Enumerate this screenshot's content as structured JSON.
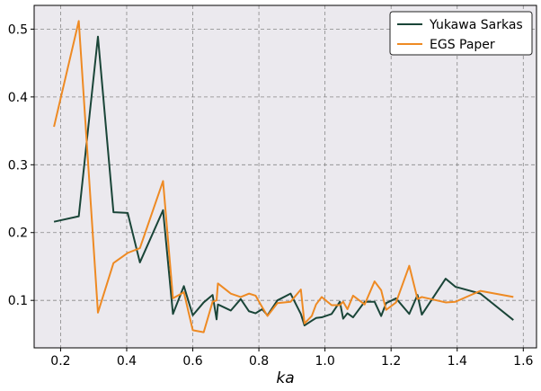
{
  "chart_data": {
    "type": "line",
    "xlabel": "ka",
    "ylabel": "",
    "xlim": [
      0.12,
      1.64
    ],
    "ylim": [
      0.03,
      0.535
    ],
    "xticks": [
      "0.2",
      "0.4",
      "0.6",
      "0.8",
      "1.0",
      "1.2",
      "1.4",
      "1.6"
    ],
    "yticks": [
      "0.1",
      "0.2",
      "0.3",
      "0.4",
      "0.5"
    ],
    "grid": true,
    "legend_position": "top-right",
    "background": "#ebe9ee",
    "series": [
      {
        "name": "Yukawa Sarkas",
        "color": "#1a4538",
        "x": [
          0.18,
          0.255,
          0.313,
          0.36,
          0.403,
          0.44,
          0.51,
          0.54,
          0.573,
          0.6,
          0.633,
          0.66,
          0.672,
          0.676,
          0.715,
          0.745,
          0.77,
          0.79,
          0.81,
          0.826,
          0.856,
          0.896,
          0.927,
          0.938,
          0.96,
          0.973,
          0.99,
          1.02,
          1.045,
          1.055,
          1.068,
          1.085,
          1.12,
          1.15,
          1.17,
          1.185,
          1.215,
          1.255,
          1.28,
          1.293,
          1.365,
          1.395,
          1.47,
          1.57
        ],
        "y": [
          0.216,
          0.224,
          0.489,
          0.23,
          0.229,
          0.156,
          0.233,
          0.08,
          0.121,
          0.078,
          0.097,
          0.108,
          0.072,
          0.094,
          0.085,
          0.102,
          0.084,
          0.081,
          0.087,
          0.078,
          0.1,
          0.11,
          0.08,
          0.063,
          0.07,
          0.074,
          0.075,
          0.08,
          0.098,
          0.073,
          0.081,
          0.075,
          0.098,
          0.098,
          0.077,
          0.096,
          0.103,
          0.08,
          0.108,
          0.079,
          0.132,
          0.12,
          0.11,
          0.071
        ]
      },
      {
        "name": "EGS Paper",
        "color": "#ee8a23",
        "x": [
          0.18,
          0.255,
          0.313,
          0.36,
          0.403,
          0.44,
          0.51,
          0.54,
          0.573,
          0.6,
          0.633,
          0.66,
          0.672,
          0.676,
          0.715,
          0.745,
          0.77,
          0.79,
          0.81,
          0.826,
          0.856,
          0.896,
          0.927,
          0.938,
          0.96,
          0.973,
          0.99,
          1.02,
          1.045,
          1.055,
          1.068,
          1.085,
          1.12,
          1.15,
          1.17,
          1.185,
          1.215,
          1.255,
          1.28,
          1.293,
          1.365,
          1.395,
          1.47,
          1.57
        ],
        "y": [
          0.356,
          0.512,
          0.082,
          0.155,
          0.17,
          0.177,
          0.276,
          0.103,
          0.112,
          0.056,
          0.053,
          0.098,
          0.1,
          0.125,
          0.11,
          0.105,
          0.11,
          0.107,
          0.09,
          0.077,
          0.096,
          0.098,
          0.116,
          0.066,
          0.077,
          0.094,
          0.105,
          0.093,
          0.093,
          0.098,
          0.087,
          0.107,
          0.094,
          0.128,
          0.115,
          0.086,
          0.097,
          0.151,
          0.102,
          0.105,
          0.097,
          0.098,
          0.114,
          0.105
        ]
      }
    ]
  }
}
